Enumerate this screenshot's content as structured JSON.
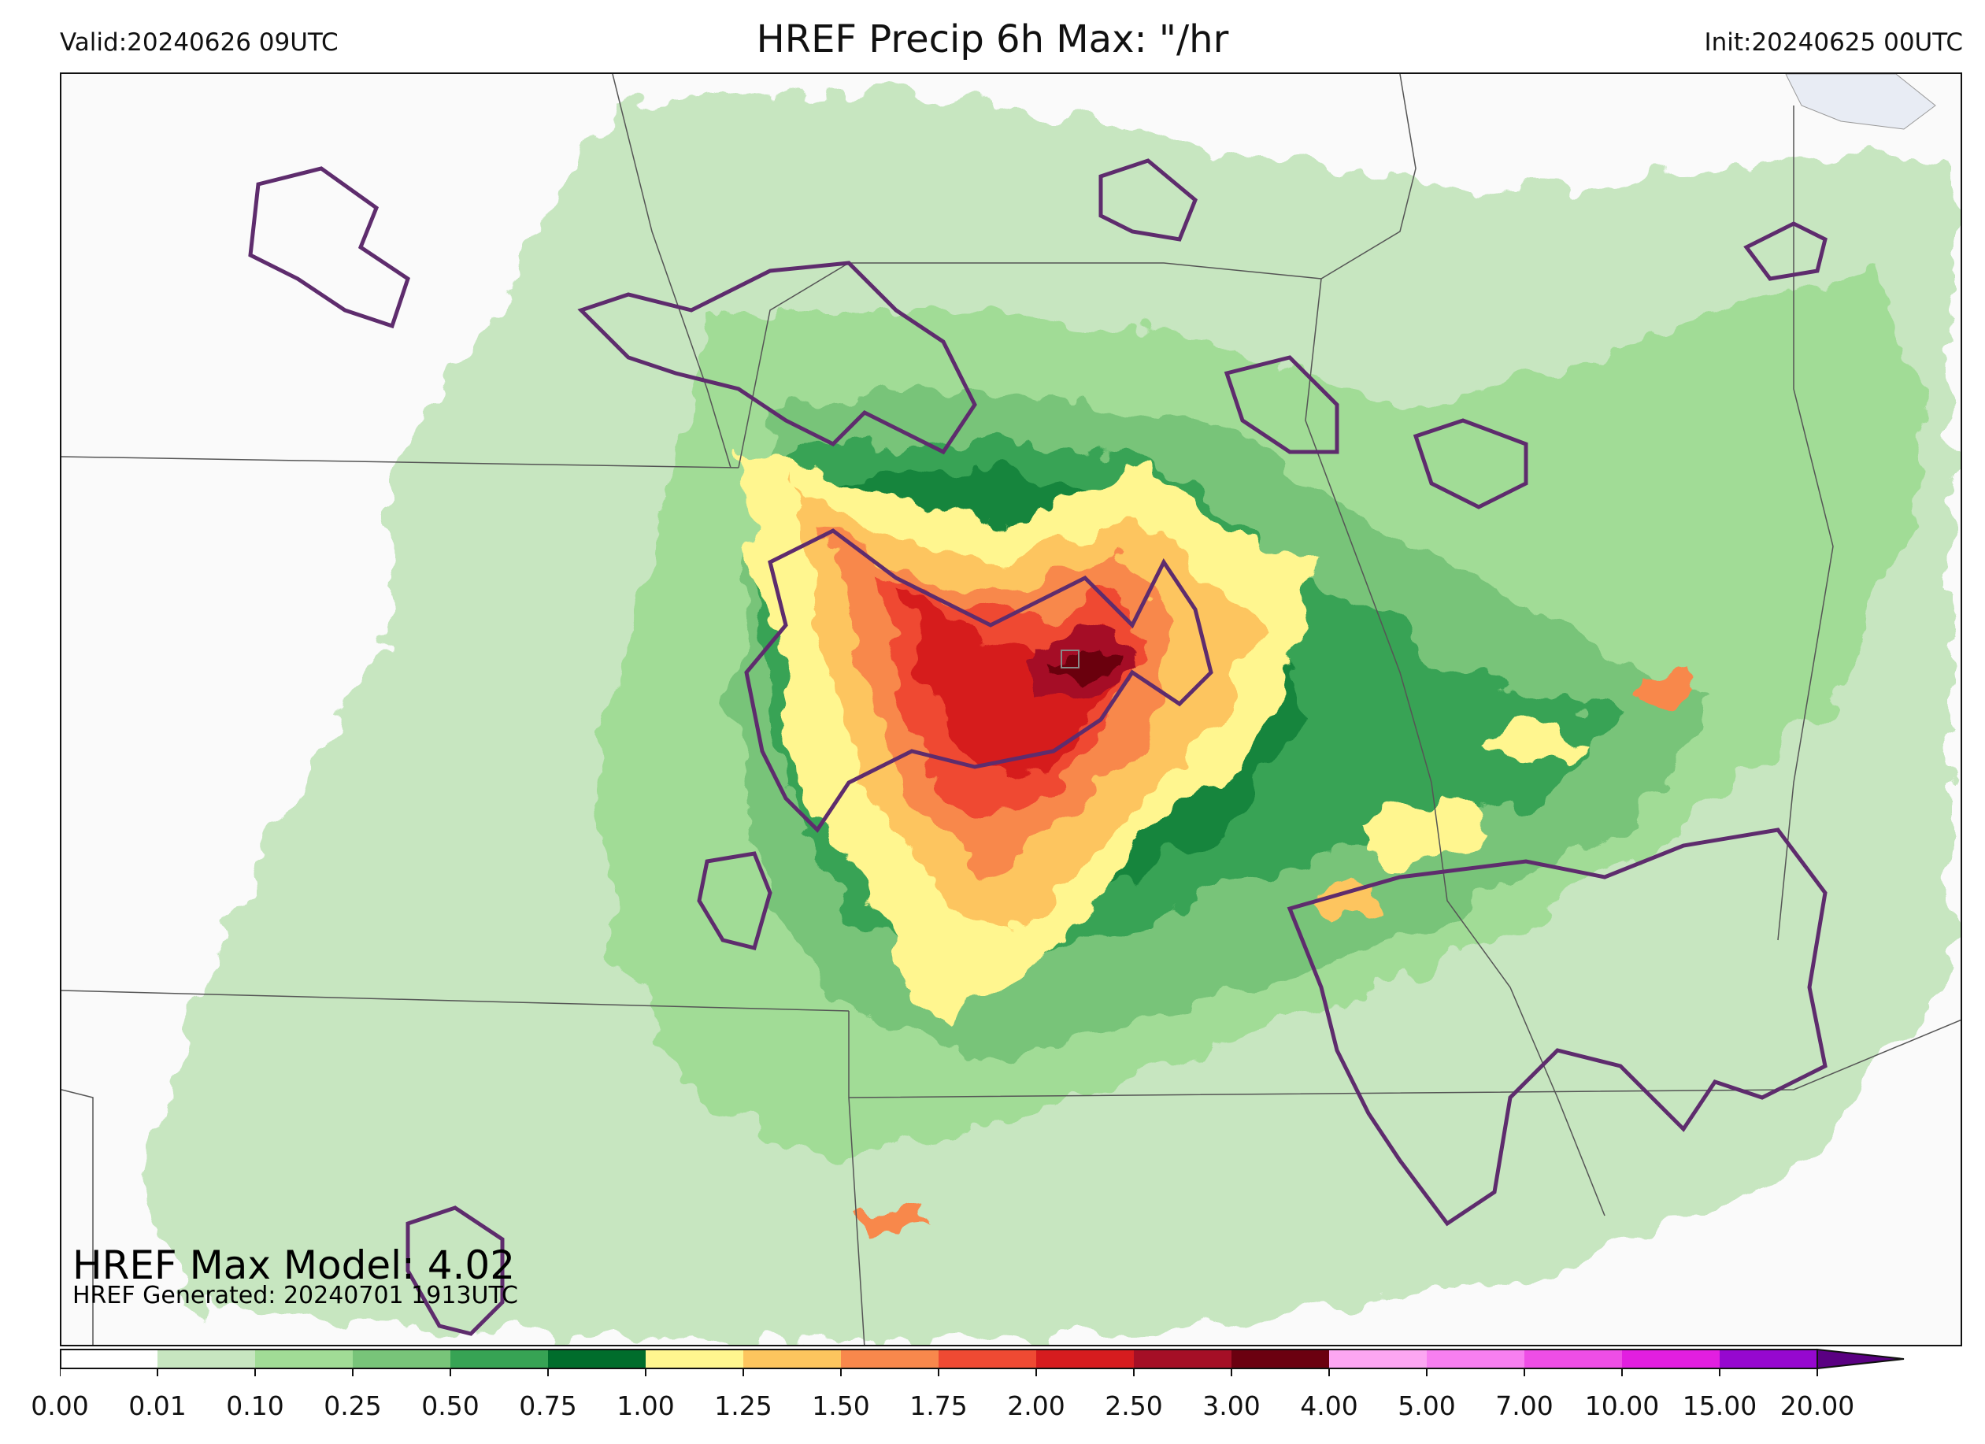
{
  "header": {
    "valid": "Valid:20240626 09UTC",
    "title": "HREF Precip 6h Max: \"/hr",
    "init": "Init:20240625 00UTC"
  },
  "annotations": {
    "max_model": "HREF Max Model: 4.02",
    "generated": "HREF Generated: 20240701 1913UTC"
  },
  "colorbar": {
    "ticks": [
      "0.00",
      "0.01",
      "0.10",
      "0.25",
      "0.50",
      "0.75",
      "1.00",
      "1.25",
      "1.50",
      "1.75",
      "2.00",
      "2.50",
      "3.00",
      "4.00",
      "5.00",
      "7.00",
      "10.00",
      "15.00",
      "20.00"
    ],
    "colors": [
      "#ffffff",
      "#c7e6c0",
      "#a1dc96",
      "#78c479",
      "#37a354",
      "#006d2c",
      "#fff68f",
      "#fdc55e",
      "#f8884c",
      "#ef4a33",
      "#d61c1f",
      "#a50f26",
      "#6b0010",
      "#fca6f2",
      "#f77ff0",
      "#ee4ee6",
      "#e21fe0",
      "#9608cf",
      "#5a0082"
    ],
    "extend": "max"
  },
  "map_colors": {
    "background": "#fafafa",
    "contour": "#5e2c6d",
    "boundary": "#555555"
  }
}
